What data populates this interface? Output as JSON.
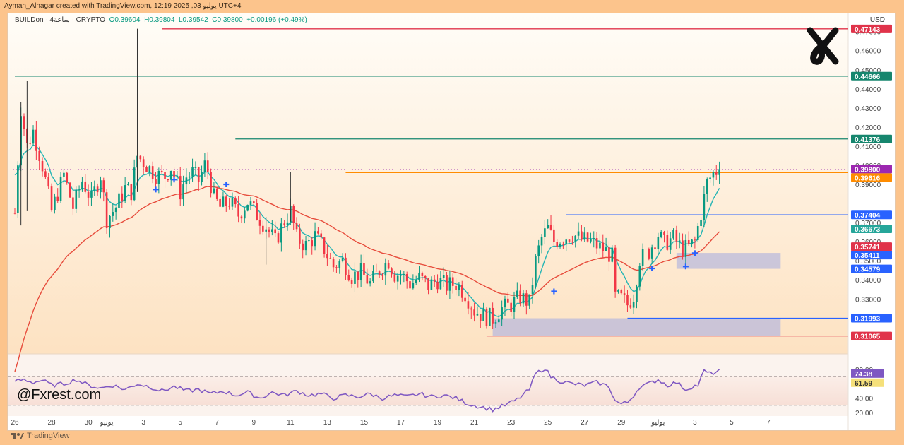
{
  "header": {
    "credit": "Ayman_Alnagar created with TradingView.com, 12:19 2025 ,03 يوليو UTC+4"
  },
  "legend": {
    "symbol": "BUILDon · 4ساعة · CRYPTO",
    "open": "O0.39604",
    "high": "H0.39804",
    "low": "L0.39542",
    "close": "C0.39800",
    "change": "+0.00196 (+0.49%)"
  },
  "currency": "USD",
  "watermark": "@Fxrest.com",
  "footer": {
    "brand": "TradingView"
  },
  "colors": {
    "up": "#089981",
    "down": "#f23645",
    "ema_fast": "#26b5b5",
    "ema_slow": "#e74c3c",
    "rsi": "#7e57c2",
    "level_red": "#e0334a",
    "level_green": "#16866e",
    "level_orange": "#ff8c00",
    "level_blue": "#2962ff",
    "zone": "#b9b9dc"
  },
  "chart_data": {
    "type": "candlestick",
    "title": "BUILDon / 4h",
    "ylim": [
      0.302,
      0.4795
    ],
    "y_ticks": [
      "0.47000",
      "0.46000",
      "0.45000",
      "0.44000",
      "0.43000",
      "0.42000",
      "0.41000",
      "0.40000",
      "0.39000",
      "0.37000",
      "0.36000",
      "0.35000",
      "0.34000",
      "0.33000",
      "0.32000"
    ],
    "x_ticks": [
      {
        "x": 0,
        "label": "26"
      },
      {
        "x": 12,
        "label": "28"
      },
      {
        "x": 24,
        "label": "30"
      },
      {
        "x": 30,
        "label": "يونيو"
      },
      {
        "x": 42,
        "label": "3"
      },
      {
        "x": 54,
        "label": "5"
      },
      {
        "x": 66,
        "label": "7"
      },
      {
        "x": 78,
        "label": "9"
      },
      {
        "x": 90,
        "label": "11"
      },
      {
        "x": 102,
        "label": "13"
      },
      {
        "x": 114,
        "label": "15"
      },
      {
        "x": 126,
        "label": "17"
      },
      {
        "x": 138,
        "label": "19"
      },
      {
        "x": 150,
        "label": "21"
      },
      {
        "x": 162,
        "label": "23"
      },
      {
        "x": 174,
        "label": "25"
      },
      {
        "x": 186,
        "label": "27"
      },
      {
        "x": 198,
        "label": "29"
      },
      {
        "x": 210,
        "label": "يوليو"
      },
      {
        "x": 222,
        "label": "3"
      },
      {
        "x": 234,
        "label": "5"
      },
      {
        "x": 246,
        "label": "7"
      }
    ],
    "x_range": [
      0,
      249
    ],
    "anchors": [
      [
        0,
        0.375
      ],
      [
        2,
        0.43
      ],
      [
        4,
        0.41
      ],
      [
        6,
        0.418
      ],
      [
        9,
        0.4
      ],
      [
        12,
        0.376
      ],
      [
        16,
        0.395
      ],
      [
        19,
        0.378
      ],
      [
        22,
        0.392
      ],
      [
        25,
        0.382
      ],
      [
        28,
        0.395
      ],
      [
        30,
        0.372
      ],
      [
        33,
        0.378
      ],
      [
        36,
        0.388
      ],
      [
        38,
        0.386
      ],
      [
        40,
        0.405
      ],
      [
        43,
        0.4
      ],
      [
        46,
        0.395
      ],
      [
        49,
        0.394
      ],
      [
        51,
        0.399
      ],
      [
        54,
        0.386
      ],
      [
        56,
        0.394
      ],
      [
        58,
        0.396
      ],
      [
        60,
        0.392
      ],
      [
        62,
        0.4
      ],
      [
        63,
        0.397
      ],
      [
        65,
        0.383
      ],
      [
        67,
        0.378
      ],
      [
        70,
        0.381
      ],
      [
        73,
        0.374
      ],
      [
        76,
        0.381
      ],
      [
        79,
        0.374
      ],
      [
        82,
        0.368
      ],
      [
        85,
        0.36
      ],
      [
        88,
        0.371
      ],
      [
        90,
        0.376
      ],
      [
        92,
        0.362
      ],
      [
        95,
        0.358
      ],
      [
        98,
        0.363
      ],
      [
        101,
        0.356
      ],
      [
        104,
        0.347
      ],
      [
        107,
        0.35
      ],
      [
        110,
        0.342
      ],
      [
        113,
        0.344
      ],
      [
        116,
        0.338
      ],
      [
        119,
        0.345
      ],
      [
        122,
        0.35
      ],
      [
        124,
        0.343
      ],
      [
        126,
        0.343
      ],
      [
        129,
        0.338
      ],
      [
        132,
        0.341
      ],
      [
        135,
        0.337
      ],
      [
        138,
        0.34
      ],
      [
        141,
        0.337
      ],
      [
        144,
        0.338
      ],
      [
        147,
        0.333
      ],
      [
        150,
        0.324
      ],
      [
        153,
        0.321
      ],
      [
        156,
        0.32
      ],
      [
        159,
        0.325
      ],
      [
        162,
        0.327
      ],
      [
        165,
        0.331
      ],
      [
        168,
        0.328
      ],
      [
        170,
        0.35
      ],
      [
        172,
        0.362
      ],
      [
        174,
        0.367
      ],
      [
        176,
        0.36
      ],
      [
        179,
        0.362
      ],
      [
        182,
        0.364
      ],
      [
        185,
        0.361
      ],
      [
        188,
        0.36
      ],
      [
        191,
        0.357
      ],
      [
        193,
        0.355
      ],
      [
        195,
        0.352
      ],
      [
        196,
        0.331
      ],
      [
        198,
        0.33
      ],
      [
        200,
        0.327
      ],
      [
        202,
        0.332
      ],
      [
        204,
        0.351
      ],
      [
        207,
        0.355
      ],
      [
        210,
        0.364
      ],
      [
        212,
        0.359
      ],
      [
        215,
        0.362
      ],
      [
        218,
        0.356
      ],
      [
        220,
        0.357
      ],
      [
        222,
        0.36
      ],
      [
        224,
        0.375
      ],
      [
        226,
        0.391
      ],
      [
        228,
        0.396
      ],
      [
        230,
        0.398
      ]
    ],
    "ema_fast": {
      "name": "EMA fast",
      "period": 8
    },
    "ema_slow": {
      "name": "EMA slow",
      "period": 40
    },
    "levels": [
      {
        "value": 0.47143,
        "label": "0.47143",
        "color": "#e0334a",
        "x_start": 48
      },
      {
        "value": 0.44666,
        "label": "0.44666",
        "color": "#16866e",
        "x_start": 0
      },
      {
        "value": 0.41376,
        "label": "0.41376",
        "color": "#16866e",
        "x_start": 72
      },
      {
        "value": 0.39616,
        "label": "0.39616",
        "color": "#ff8c00",
        "x_start": 108
      },
      {
        "value": 0.37404,
        "label": "0.37404",
        "color": "#2962ff",
        "x_start": 180
      },
      {
        "value": 0.31993,
        "label": "0.31993",
        "color": "#2962ff",
        "x_start": 200
      },
      {
        "value": 0.31065,
        "label": "0.31065",
        "color": "#e0334a",
        "x_start": 154
      }
    ],
    "price_tags": [
      {
        "value": 0.47143,
        "label": "0.47143",
        "color": "#e0334a"
      },
      {
        "value": 0.44666,
        "label": "0.44666",
        "color": "#16866e"
      },
      {
        "value": 0.41376,
        "label": "0.41376",
        "color": "#16866e"
      },
      {
        "value": 0.398,
        "label": "0.39800",
        "color": "#9c27b0"
      },
      {
        "value": 0.39616,
        "label": "0.39616",
        "color": "#ff8c00"
      },
      {
        "value": 0.37404,
        "label": "0.37404",
        "color": "#2962ff"
      },
      {
        "value": 0.36673,
        "label": "0.36673",
        "color": "#26a69a"
      },
      {
        "value": 0.35741,
        "label": "0.35741",
        "color": "#e0334a"
      },
      {
        "value": 0.35411,
        "label": "0.35411",
        "color": "#2962ff"
      },
      {
        "value": 0.34579,
        "label": "0.34579",
        "color": "#2962ff"
      },
      {
        "value": 0.31993,
        "label": "0.31993",
        "color": "#2962ff"
      },
      {
        "value": 0.31065,
        "label": "0.31065",
        "color": "#e0334a"
      }
    ],
    "zones": [
      {
        "x0": 156,
        "x1": 250,
        "y0": 0.31065,
        "y1": 0.31993
      },
      {
        "x0": 216,
        "x1": 250,
        "y0": 0.34579,
        "y1": 0.35411
      }
    ],
    "markers": [
      {
        "x": 46,
        "y": 0.3873
      },
      {
        "x": 52,
        "y": 0.3925
      },
      {
        "x": 69,
        "y": 0.39
      },
      {
        "x": 176,
        "y": 0.334
      },
      {
        "x": 208,
        "y": 0.346
      },
      {
        "x": 219,
        "y": 0.347
      },
      {
        "x": 222,
        "y": 0.354
      }
    ],
    "rsi": {
      "ylim": [
        15,
        88
      ],
      "ticks": [
        "80.00",
        "60.00",
        "40.00",
        "20.00"
      ],
      "bands": [
        70,
        50,
        30
      ],
      "values_label": [
        "74.38",
        "61.59"
      ],
      "anchors": [
        [
          0,
          64
        ],
        [
          3,
          66
        ],
        [
          6,
          62
        ],
        [
          9,
          65
        ],
        [
          12,
          58
        ],
        [
          16,
          60
        ],
        [
          20,
          66
        ],
        [
          24,
          58
        ],
        [
          28,
          54
        ],
        [
          32,
          58
        ],
        [
          36,
          52
        ],
        [
          40,
          60
        ],
        [
          44,
          56
        ],
        [
          48,
          50
        ],
        [
          52,
          56
        ],
        [
          56,
          50
        ],
        [
          60,
          52
        ],
        [
          64,
          46
        ],
        [
          68,
          50
        ],
        [
          72,
          44
        ],
        [
          76,
          48
        ],
        [
          80,
          40
        ],
        [
          84,
          48
        ],
        [
          88,
          44
        ],
        [
          92,
          50
        ],
        [
          96,
          44
        ],
        [
          100,
          46
        ],
        [
          104,
          40
        ],
        [
          108,
          44
        ],
        [
          112,
          42
        ],
        [
          116,
          46
        ],
        [
          120,
          40
        ],
        [
          124,
          44
        ],
        [
          128,
          42
        ],
        [
          132,
          46
        ],
        [
          136,
          42
        ],
        [
          140,
          44
        ],
        [
          144,
          40
        ],
        [
          148,
          32
        ],
        [
          152,
          28
        ],
        [
          156,
          24
        ],
        [
          160,
          30
        ],
        [
          164,
          38
        ],
        [
          168,
          52
        ],
        [
          170,
          74
        ],
        [
          173,
          82
        ],
        [
          175,
          70
        ],
        [
          178,
          64
        ],
        [
          182,
          60
        ],
        [
          186,
          58
        ],
        [
          190,
          62
        ],
        [
          194,
          56
        ],
        [
          196,
          36
        ],
        [
          198,
          32
        ],
        [
          200,
          34
        ],
        [
          202,
          44
        ],
        [
          204,
          56
        ],
        [
          207,
          60
        ],
        [
          210,
          66
        ],
        [
          213,
          58
        ],
        [
          216,
          62
        ],
        [
          219,
          52
        ],
        [
          221,
          56
        ],
        [
          223,
          58
        ],
        [
          225,
          78
        ],
        [
          227,
          74
        ],
        [
          230,
          78
        ]
      ]
    }
  }
}
